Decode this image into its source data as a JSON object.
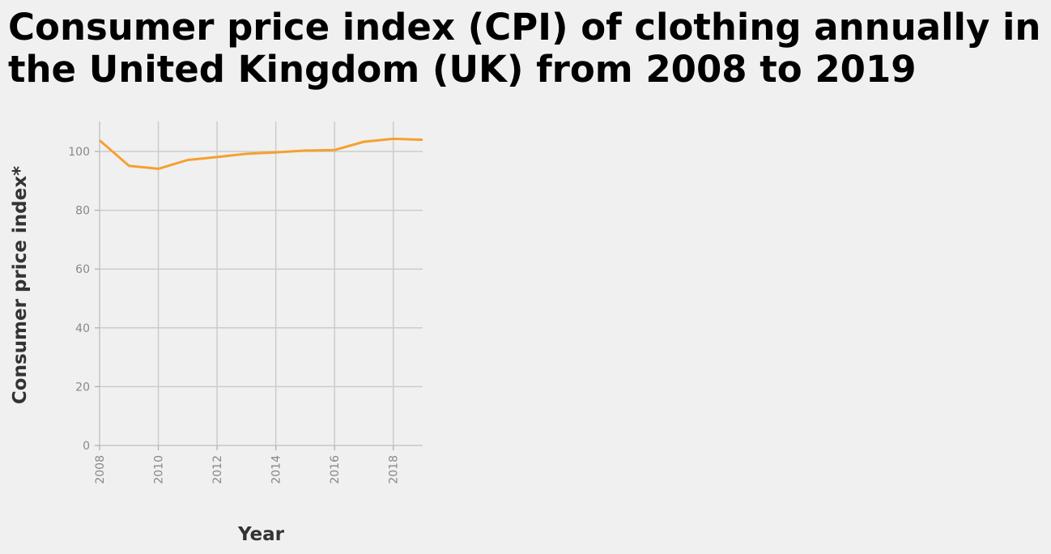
{
  "chart_data": {
    "type": "line",
    "title": "Consumer price index (CPI) of clothing annually in the United Kingdom (UK) from 2008 to 2019",
    "xlabel": "Year",
    "ylabel": "Consumer price index*",
    "xlim": [
      2008,
      2019
    ],
    "ylim": [
      0,
      110
    ],
    "x_ticks": [
      2008,
      2010,
      2012,
      2014,
      2016,
      2018
    ],
    "y_ticks": [
      0,
      20,
      40,
      60,
      80,
      100
    ],
    "grid": true,
    "legend": false,
    "line_color": "#f5a030",
    "series": [
      {
        "x": [
          2008,
          2009,
          2010,
          2011,
          2012,
          2013,
          2014,
          2015,
          2016,
          2017,
          2018,
          2019
        ],
        "values": [
          103.8,
          95.1,
          94.1,
          97.1,
          98.1,
          99.2,
          99.7,
          100.3,
          100.5,
          103.3,
          104.3,
          104.0
        ]
      }
    ]
  }
}
